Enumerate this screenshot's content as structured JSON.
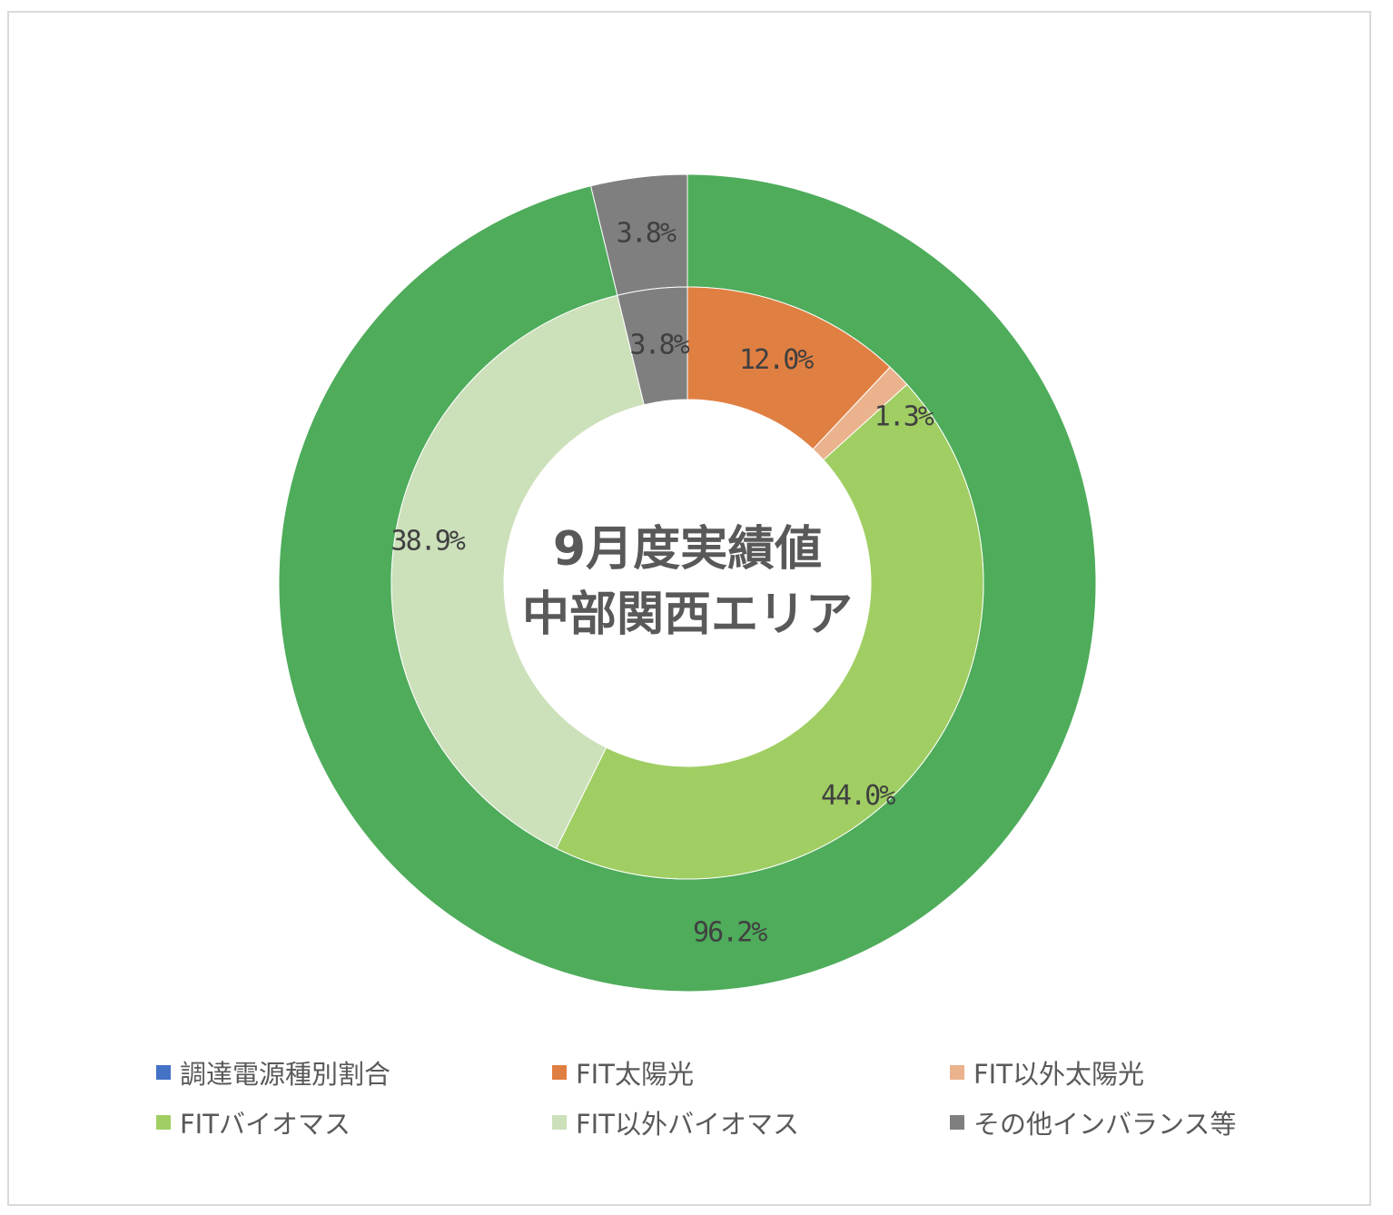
{
  "chart_data": {
    "type": "pie",
    "subtype": "doughnut-two-ring",
    "title_lines": [
      "9月度実績値",
      "中部関西エリア"
    ],
    "rings": [
      {
        "name": "outer",
        "slices": [
          {
            "label": "96.2%",
            "value": 96.2,
            "color": "#4EAC5B"
          },
          {
            "label": "3.8%",
            "value": 3.8,
            "color": "#7F7F7F"
          }
        ]
      },
      {
        "name": "inner",
        "slices": [
          {
            "label": "12.0%",
            "value": 12.0,
            "color": "#E07F42"
          },
          {
            "label": "1.3%",
            "value": 1.3,
            "color": "#EAB38D"
          },
          {
            "label": "44.0%",
            "value": 44.0,
            "color": "#A0CE63"
          },
          {
            "label": "38.9%",
            "value": 38.9,
            "color": "#CCE0BA"
          },
          {
            "label": "3.8%",
            "value": 3.8,
            "color": "#7F7F7F"
          }
        ]
      }
    ],
    "legend_position": "bottom",
    "legend": [
      {
        "label": "調達電源種別割合",
        "color": "#4472C4"
      },
      {
        "label": "FIT太陽光",
        "color": "#E07F42"
      },
      {
        "label": "FIT以外太陽光",
        "color": "#EAB38D"
      },
      {
        "label": "FITバイオマス",
        "color": "#A0CE63"
      },
      {
        "label": "FIT以外バイオマス",
        "color": "#CCE0BA"
      },
      {
        "label": "その他インバランス等",
        "color": "#7F7F7F"
      }
    ]
  }
}
